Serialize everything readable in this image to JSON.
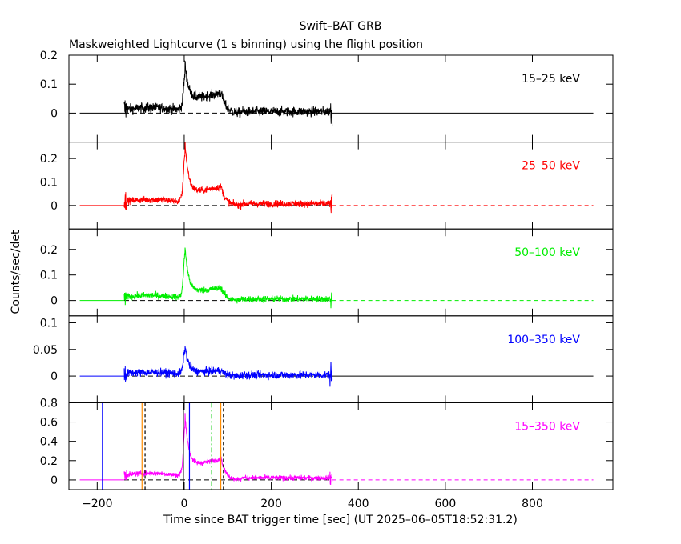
{
  "chart_data": {
    "type": "line",
    "title": "Swift–BAT GRB",
    "subtitle": "Maskweighted Lightcurve (1 s binning) using the flight position",
    "xlabel": "Time since BAT trigger time [sec] (UT 2025–06–05T18:52:31.2)",
    "ylabel": "Counts/sec/det",
    "xlim": [
      -265,
      985
    ],
    "x_ticks": [
      -200,
      0,
      200,
      400,
      600,
      800
    ],
    "x_tick_labels": [
      "−200",
      "0",
      "200",
      "400",
      "600",
      "800"
    ],
    "data_range": [
      -138,
      340
    ],
    "panels": [
      {
        "label": "15–25 keV",
        "color": "#000000",
        "dashed_after": false,
        "ylim": [
          -0.1,
          0.2
        ],
        "yticks": [
          0,
          0.1,
          0.2
        ],
        "yticklabels": [
          "0",
          "0.1",
          "0.2"
        ],
        "baseline_color": "#000000",
        "profile": {
          "pre_level": 0.018,
          "peak_t": 2,
          "peak": 0.13,
          "hump_t": 85,
          "hump": 0.07,
          "noise": 0.016
        }
      },
      {
        "label": "25–50 keV",
        "color": "#ff0000",
        "dashed_after": true,
        "ylim": [
          -0.1,
          0.27
        ],
        "yticks": [
          0,
          0.1,
          0.2
        ],
        "yticklabels": [
          "0",
          "0.1",
          "0.2"
        ],
        "baseline_color": "#ff0000",
        "profile": {
          "pre_level": 0.025,
          "peak_t": 2,
          "peak": 0.22,
          "hump_t": 85,
          "hump": 0.08,
          "noise": 0.014
        }
      },
      {
        "label": "50–100 keV",
        "color": "#00ee00",
        "dashed_after": true,
        "ylim": [
          -0.06,
          0.28
        ],
        "yticks": [
          0,
          0.1,
          0.2
        ],
        "yticklabels": [
          "0",
          "0.1",
          "0.2"
        ],
        "baseline_color": "#00ee00",
        "profile": {
          "pre_level": 0.02,
          "peak_t": 2,
          "peak": 0.18,
          "hump_t": 85,
          "hump": 0.05,
          "noise": 0.012
        }
      },
      {
        "label": "100–350 keV",
        "color": "#0000ff",
        "dashed_after": false,
        "ylim": [
          -0.05,
          0.113
        ],
        "yticks": [
          0,
          0.05,
          0.1
        ],
        "yticklabels": [
          "0",
          "0.05",
          "0.1"
        ],
        "baseline_color": "#0000ff",
        "profile": {
          "pre_level": 0.007,
          "peak_t": 2,
          "peak": 0.05,
          "hump_t": 85,
          "hump": 0.01,
          "noise": 0.007
        }
      },
      {
        "label": "15–350 keV",
        "color": "#ff00ff",
        "dashed_after": true,
        "ylim": [
          -0.1,
          0.8
        ],
        "yticks": [
          0,
          0.2,
          0.4,
          0.6,
          0.8
        ],
        "yticklabels": [
          "0",
          "0.2",
          "0.4",
          "0.6",
          "0.8"
        ],
        "baseline_color": "#ff00ff",
        "profile": {
          "pre_level": 0.07,
          "peak_t": 2,
          "peak": 0.55,
          "hump_t": 85,
          "hump": 0.22,
          "noise": 0.025
        }
      }
    ],
    "marker_lines": [
      {
        "x": -188,
        "color": "#0000ff",
        "style": "solid"
      },
      {
        "x": -97,
        "color": "#ff8c00",
        "style": "solid"
      },
      {
        "x": -90,
        "color": "#000000",
        "style": "dashed"
      },
      {
        "x": -2,
        "color": "#000000",
        "style": "solid"
      },
      {
        "x": 12,
        "color": "#0000ff",
        "style": "solid"
      },
      {
        "x": 63,
        "color": "#00cc00",
        "style": "dashdot"
      },
      {
        "x": 84,
        "color": "#ff8c00",
        "style": "solid"
      },
      {
        "x": 90,
        "color": "#000000",
        "style": "dashed"
      }
    ]
  }
}
